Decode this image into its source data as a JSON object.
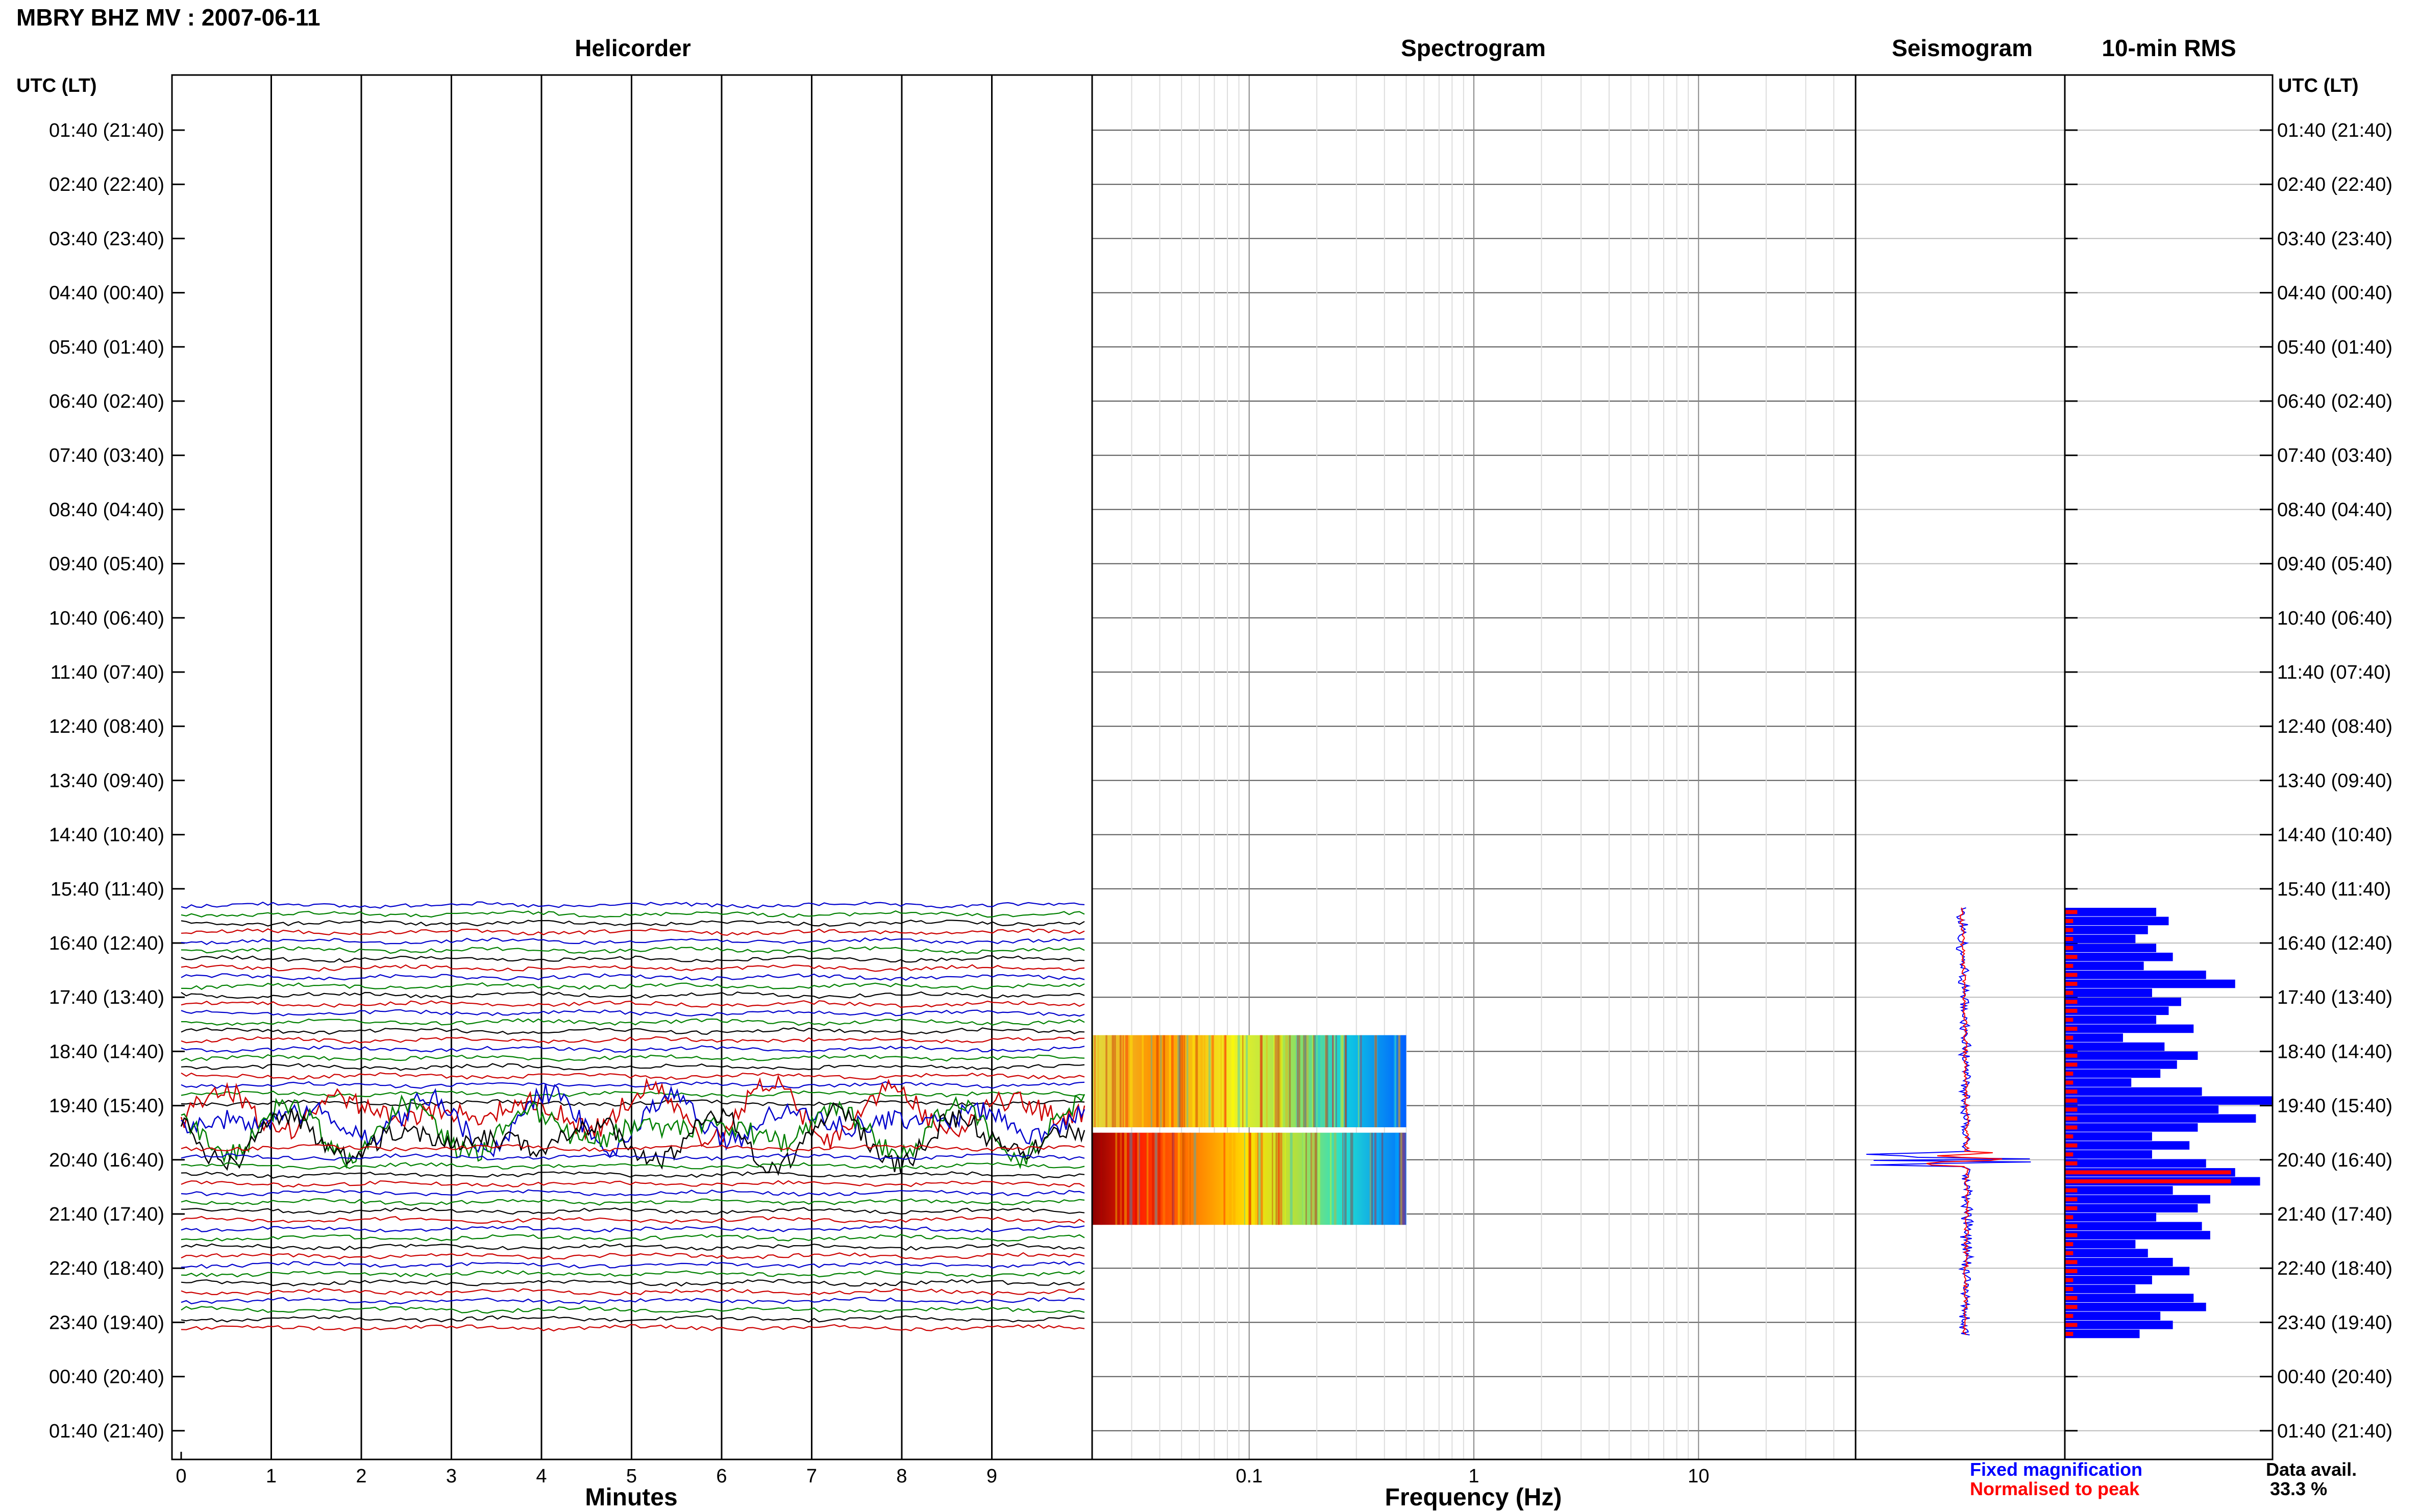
{
  "header": {
    "title": "MBRY BHZ MV : 2007-06-11"
  },
  "panels": {
    "helicorder": "Helicorder",
    "spectrogram": "Spectrogram",
    "seismogram": "Seismogram",
    "rms": "10-min RMS"
  },
  "axes": {
    "time_header_left": "UTC (LT)",
    "time_header_right": "UTC (LT)",
    "minutes_label": "Minutes",
    "frequency_label": "Frequency (Hz)"
  },
  "legend": {
    "fixed": "Fixed magnification",
    "normalised": "Normalised to peak"
  },
  "availability": {
    "label": "Data avail.",
    "value": "33.3 %"
  },
  "chart_data": {
    "type": "helicorder",
    "row_labels": [
      "01:40 (21:40)",
      "02:40 (22:40)",
      "03:40 (23:40)",
      "04:40 (00:40)",
      "05:40 (01:40)",
      "06:40 (02:40)",
      "07:40 (03:40)",
      "08:40 (04:40)",
      "09:40 (05:40)",
      "10:40 (06:40)",
      "11:40 (07:40)",
      "12:40 (08:40)",
      "13:40 (09:40)",
      "14:40 (10:40)",
      "15:40 (11:40)",
      "16:40 (12:40)",
      "17:40 (13:40)",
      "18:40 (14:40)",
      "19:40 (15:40)",
      "20:40 (16:40)",
      "21:40 (17:40)",
      "22:40 (18:40)",
      "23:40 (19:40)",
      "00:40 (20:40)",
      "01:40 (21:40)"
    ],
    "minute_ticks": [
      "0",
      "1",
      "2",
      "3",
      "4",
      "5",
      "6",
      "7",
      "8",
      "9"
    ],
    "freq_ticks": [
      "0.1",
      "1",
      "10"
    ],
    "freq_range": [
      0.02,
      50
    ],
    "colors": {
      "fixed": "#0000ff",
      "normalised": "#ff0000",
      "trace_cycle": [
        "#0000cc",
        "#008000",
        "#000000",
        "#cc0000"
      ]
    },
    "rms_fixed": [
      22,
      25,
      20,
      17,
      22,
      26,
      19,
      34,
      41,
      21,
      28,
      25,
      22,
      31,
      14,
      24,
      32,
      27,
      23,
      16,
      33,
      50,
      37,
      46,
      32,
      21,
      30,
      21,
      34,
      41,
      47,
      26,
      35,
      32,
      22,
      33,
      35,
      17,
      20,
      26,
      30,
      21,
      17,
      31,
      34,
      23,
      26,
      18
    ],
    "rms_norm": [
      3,
      2,
      2,
      2,
      2,
      3,
      2,
      3,
      3,
      2,
      3,
      3,
      2,
      3,
      2,
      2,
      3,
      3,
      2,
      2,
      3,
      3,
      3,
      3,
      3,
      2,
      3,
      2,
      3,
      40,
      40,
      3,
      3,
      3,
      2,
      3,
      3,
      2,
      2,
      3,
      3,
      2,
      2,
      3,
      3,
      2,
      3,
      2
    ]
  }
}
